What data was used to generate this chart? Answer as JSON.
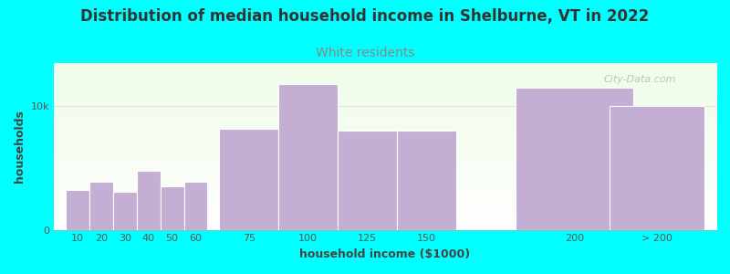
{
  "title": "Distribution of median household income in Shelburne, VT in 2022",
  "subtitle": "White residents",
  "xlabel": "household income ($1000)",
  "ylabel": "households",
  "background_color": "#00FFFF",
  "bar_color": "#c4aed4",
  "bar_edge_color": "#ffffff",
  "title_color": "#333333",
  "subtitle_color": "#888888",
  "axis_label_color": "#444444",
  "tick_color": "#555555",
  "watermark": "City-Data.com",
  "categories": [
    "10",
    "20",
    "30",
    "40",
    "50",
    "60",
    "75",
    "100",
    "125",
    "150",
    "200",
    "> 200"
  ],
  "values": [
    3200,
    3900,
    3100,
    4800,
    3500,
    3900,
    8200,
    11800,
    8000,
    8000,
    11500,
    10000
  ],
  "bar_positions": [
    10,
    20,
    30,
    40,
    50,
    60,
    75,
    100,
    125,
    150,
    200,
    240
  ],
  "bar_actual_widths": [
    10,
    10,
    10,
    10,
    10,
    10,
    25,
    25,
    25,
    25,
    50,
    40
  ],
  "ylim": [
    0,
    13500
  ],
  "yticks": [
    0,
    10000
  ],
  "ytick_labels": [
    "0",
    "10k"
  ],
  "title_fontsize": 12,
  "subtitle_fontsize": 10,
  "label_fontsize": 9,
  "tick_fontsize": 8
}
